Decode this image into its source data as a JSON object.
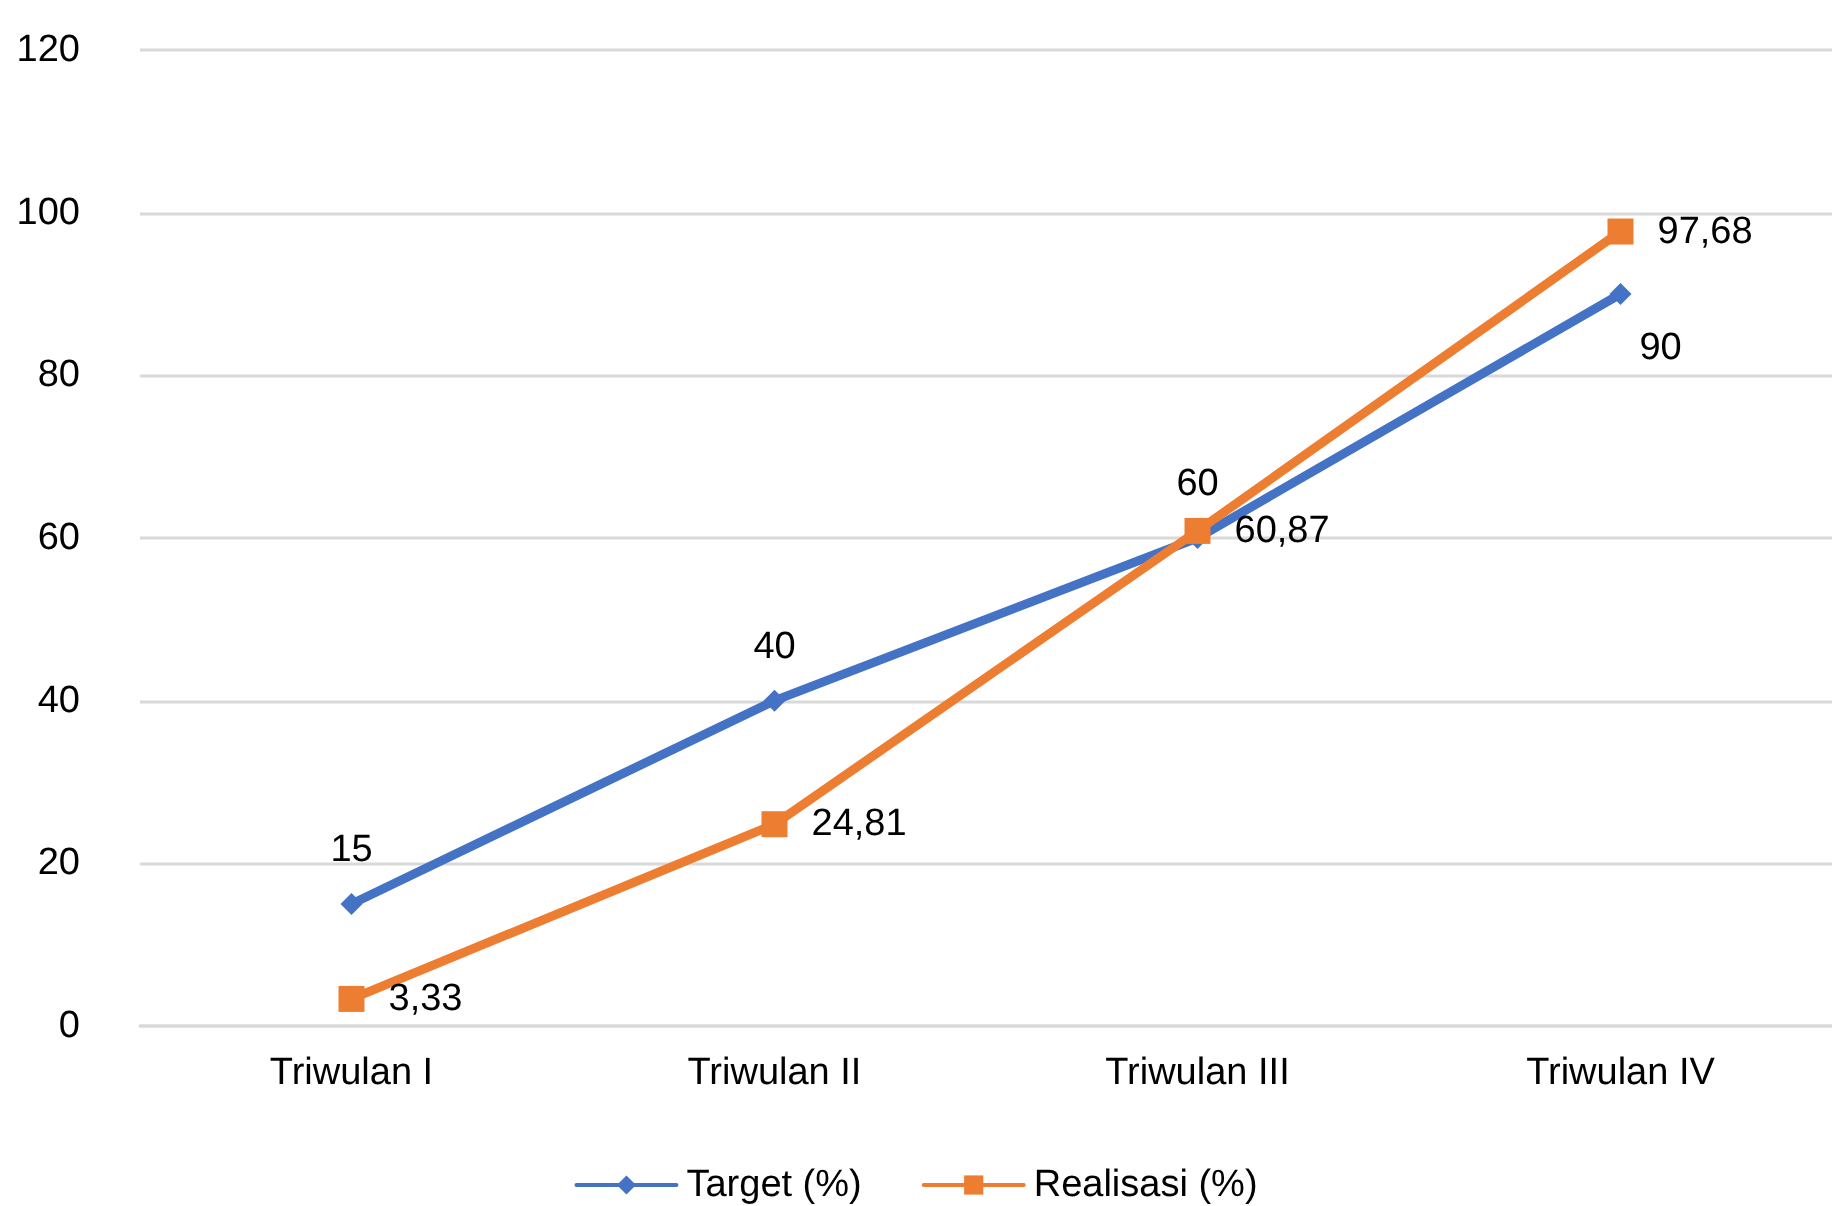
{
  "chart_data": {
    "type": "line",
    "categories": [
      "Triwulan I",
      "Triwulan II",
      "Triwulan III",
      "Triwulan IV"
    ],
    "series": [
      {
        "name": "Target (%)",
        "color": "#4472c4",
        "marker": "diamond",
        "values": [
          15,
          40,
          60,
          90
        ],
        "value_labels": [
          "15",
          "40",
          "60",
          "90"
        ]
      },
      {
        "name": "Realisasi (%)",
        "color": "#ed7d31",
        "marker": "square",
        "values": [
          3.33,
          24.81,
          60.87,
          97.68
        ],
        "value_labels": [
          "3,33",
          "24,81",
          "60,87",
          "97,68"
        ]
      }
    ],
    "ylim": [
      0,
      120
    ],
    "yticks": [
      0,
      20,
      40,
      60,
      80,
      100,
      120
    ],
    "grid": "y",
    "legend": "bottom"
  }
}
